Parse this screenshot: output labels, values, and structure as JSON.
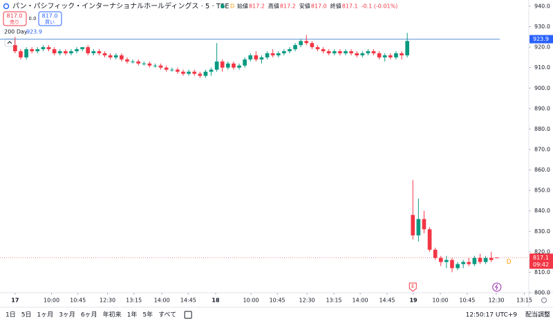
{
  "chart_data": {
    "type": "candlestick",
    "title": "パン・パシフィック・インターナショナルホールディングス · 5 · TSE",
    "ohlc_legend": {
      "open_label": "始値",
      "open": "817.2",
      "high_label": "高値",
      "high": "817.2",
      "low_label": "安値",
      "low": "817.0",
      "close_label": "終値",
      "close": "817.1",
      "change": "-0.1 (-0.01%)"
    },
    "sell": {
      "price": "817.0",
      "label": "売り"
    },
    "spread": "0.0",
    "buy": {
      "price": "817.0",
      "label": "買い"
    },
    "moving_average": {
      "name": "200 Day",
      "value": 923.9,
      "color": "#5b8fd6"
    },
    "open": [
      921,
      918,
      915,
      919,
      918,
      919,
      920,
      919,
      917,
      918,
      917,
      918,
      919,
      920,
      917,
      918,
      917,
      916,
      915,
      916,
      914,
      913,
      913,
      912,
      912,
      911,
      911,
      910,
      909,
      909,
      908,
      907,
      908,
      907,
      906,
      908,
      909,
      913,
      910,
      912,
      910,
      911,
      914,
      916,
      914,
      915,
      917,
      916,
      917,
      918,
      919,
      921,
      923,
      922,
      920,
      919,
      918,
      917,
      918,
      917,
      918,
      917,
      916,
      917,
      918,
      917,
      915,
      916,
      915,
      917,
      916,
      838,
      828,
      836,
      831,
      821,
      817,
      815,
      816,
      812,
      814,
      815,
      814,
      817,
      815,
      817,
      817.2
    ],
    "high": [
      925,
      919,
      920,
      920,
      920,
      921,
      921,
      920,
      919,
      919,
      919,
      920,
      920,
      921,
      919,
      919,
      918,
      917,
      917,
      917,
      915,
      914,
      914,
      913,
      913,
      912,
      912,
      911,
      910,
      910,
      909,
      909,
      909,
      908,
      909,
      910,
      922,
      914,
      913,
      913,
      912,
      915,
      917,
      918,
      916,
      918,
      919,
      918,
      919,
      920,
      922,
      924,
      926,
      923,
      921,
      920,
      919,
      919,
      919,
      919,
      919,
      918,
      918,
      919,
      919,
      918,
      917,
      917,
      918,
      918,
      927,
      855,
      846,
      840,
      832,
      822,
      818,
      818,
      817,
      815,
      816,
      817,
      818,
      819,
      818,
      820,
      817.2
    ],
    "low": [
      917,
      914,
      914,
      917,
      917,
      918,
      918,
      916,
      916,
      916,
      916,
      917,
      918,
      916,
      916,
      916,
      915,
      914,
      914,
      913,
      912,
      912,
      911,
      911,
      910,
      910,
      909,
      908,
      908,
      907,
      906,
      906,
      906,
      905,
      905,
      906,
      908,
      908,
      909,
      909,
      909,
      910,
      913,
      913,
      912,
      914,
      915,
      915,
      916,
      917,
      918,
      920,
      921,
      919,
      918,
      917,
      916,
      916,
      916,
      916,
      916,
      915,
      915,
      916,
      916,
      914,
      913,
      914,
      914,
      914,
      915,
      826,
      825,
      829,
      820,
      816,
      813,
      812,
      810,
      811,
      812,
      813,
      813,
      814,
      814,
      815,
      817.0
    ],
    "close": [
      918,
      915,
      919,
      918,
      919,
      920,
      919,
      917,
      918,
      917,
      918,
      919,
      920,
      917,
      918,
      917,
      916,
      915,
      916,
      914,
      913,
      913,
      912,
      912,
      911,
      911,
      910,
      909,
      909,
      908,
      907,
      908,
      907,
      906,
      908,
      909,
      913,
      910,
      912,
      910,
      911,
      914,
      916,
      914,
      915,
      917,
      916,
      917,
      918,
      919,
      921,
      923,
      922,
      920,
      919,
      918,
      917,
      918,
      917,
      918,
      917,
      916,
      917,
      918,
      917,
      915,
      916,
      915,
      917,
      916,
      923,
      828,
      836,
      831,
      821,
      817,
      815,
      816,
      812,
      814,
      815,
      814,
      817,
      815,
      817,
      816,
      817.1
    ],
    "up_color": "#089981",
    "down_color": "#f23645",
    "xlim": [
      -2.7,
      91.7
    ],
    "xticks": [
      {
        "value": 0,
        "label": "17"
      },
      {
        "value": 6.5,
        "label": "10:00"
      },
      {
        "value": 11.2,
        "label": "10:45"
      },
      {
        "value": 16.5,
        "label": "12:30"
      },
      {
        "value": 21.2,
        "label": "13:15"
      },
      {
        "value": 26.2,
        "label": "14:00"
      },
      {
        "value": 30.9,
        "label": "14:45"
      },
      {
        "value": 35.8,
        "label": "18"
      },
      {
        "value": 42.1,
        "label": "10:00"
      },
      {
        "value": 46.8,
        "label": "10:45"
      },
      {
        "value": 52.1,
        "label": "12:30"
      },
      {
        "value": 56.9,
        "label": "13:15"
      },
      {
        "value": 61.6,
        "label": "14:00"
      },
      {
        "value": 66.4,
        "label": "14:45"
      },
      {
        "value": 71.1,
        "label": "19"
      },
      {
        "value": 75.9,
        "label": "10:00"
      },
      {
        "value": 80.7,
        "label": "10:45"
      },
      {
        "value": 85.9,
        "label": "12:30"
      },
      {
        "value": 90.9,
        "label": "13:15"
      }
    ],
    "ylim": [
      800,
      940
    ],
    "yticks": [
      {
        "value": 800,
        "label": "800.0"
      },
      {
        "value": 810,
        "label": "810.0"
      },
      {
        "value": 820,
        "label": "820.0"
      },
      {
        "value": 830,
        "label": "830.0"
      },
      {
        "value": 840,
        "label": "840.0"
      },
      {
        "value": 850,
        "label": "850.0"
      },
      {
        "value": 860,
        "label": "860.0"
      },
      {
        "value": 870,
        "label": "870.0"
      },
      {
        "value": 880,
        "label": "880.0"
      },
      {
        "value": 890,
        "label": "890.0"
      },
      {
        "value": 900,
        "label": "900.0"
      },
      {
        "value": 910,
        "label": "910.0"
      },
      {
        "value": 920,
        "label": "920.0"
      },
      {
        "value": 930,
        "label": "930.0"
      },
      {
        "value": 940,
        "label": "940.0"
      }
    ],
    "countdown": "09:42",
    "events": [
      {
        "label": "E"
      },
      {
        "label": "D"
      }
    ],
    "dividend_marker": "D"
  },
  "toolbar": {
    "ranges": [
      "1日",
      "5日",
      "1ヶ月",
      "3ヶ月",
      "6ヶ月",
      "年初来",
      "1年",
      "5年",
      "すべて"
    ],
    "clock": "12:50:17 UTC+9",
    "adjust": "配当調整"
  }
}
